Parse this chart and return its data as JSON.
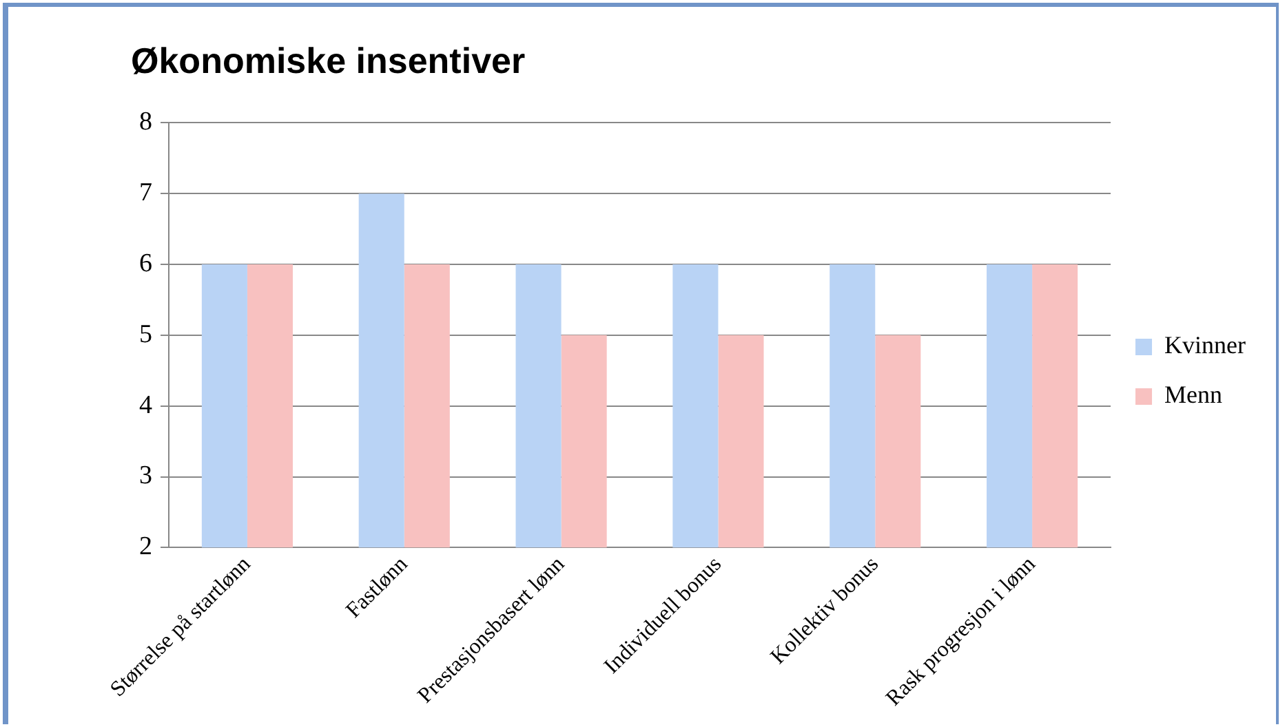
{
  "chart_data": {
    "type": "bar",
    "title": "Økonomiske insentiver",
    "categories": [
      "Størrelse på startlønn",
      "Fastlønn",
      "Prestasjonsbasert lønn",
      "Individuell bonus",
      "Kollektiv bonus",
      "Rask progresjon i lønn"
    ],
    "series": [
      {
        "name": "Kvinner",
        "color": "#b9d3f5",
        "values": [
          6,
          7,
          6,
          6,
          6,
          6
        ]
      },
      {
        "name": "Menn",
        "color": "#f8c1c0",
        "values": [
          6,
          6,
          5,
          5,
          5,
          6
        ]
      }
    ],
    "ylim": [
      2,
      8
    ],
    "yticks": [
      2,
      3,
      4,
      5,
      6,
      7,
      8
    ],
    "grid": "y",
    "legend": "right"
  }
}
